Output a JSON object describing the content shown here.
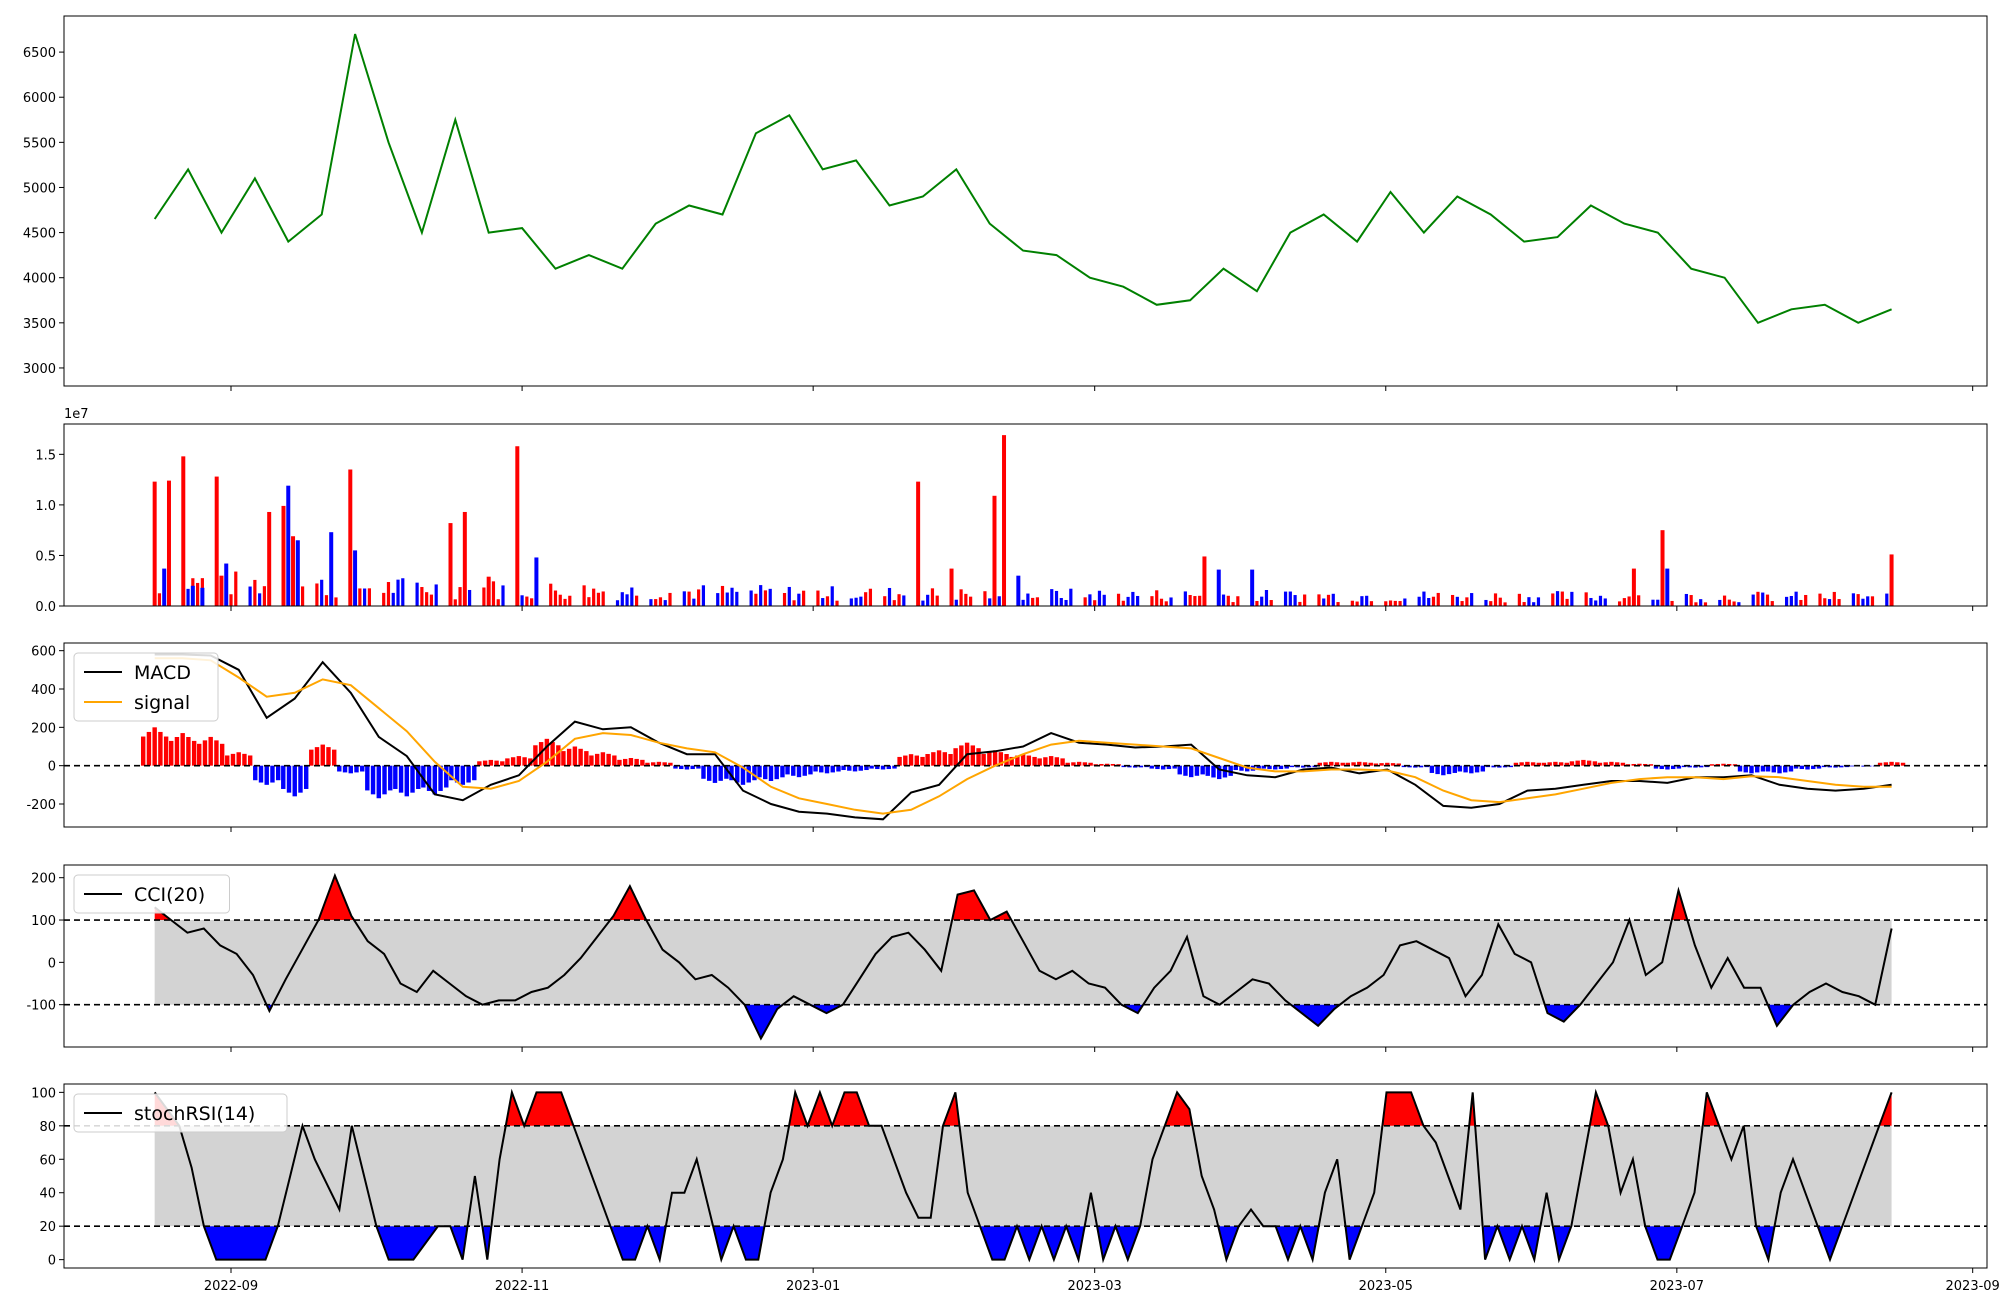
{
  "chart_data": [
    {
      "type": "line",
      "name": "price",
      "color": "#008000",
      "ylim": [
        2800,
        6900
      ],
      "yticks": [
        3000,
        3500,
        4000,
        4500,
        5000,
        5500,
        6000,
        6500
      ],
      "x_dates": [
        "2022-08-16",
        "2022-08-23",
        "2022-08-30",
        "2022-09-06",
        "2022-09-13",
        "2022-09-20",
        "2022-09-27",
        "2022-10-04",
        "2022-10-11",
        "2022-10-18",
        "2022-10-25",
        "2022-11-01",
        "2022-11-08",
        "2022-11-15",
        "2022-11-22",
        "2022-11-29",
        "2022-12-06",
        "2022-12-13",
        "2022-12-20",
        "2022-12-27",
        "2023-01-03",
        "2023-01-10",
        "2023-01-17",
        "2023-01-24",
        "2023-01-31",
        "2023-02-07",
        "2023-02-14",
        "2023-02-21",
        "2023-02-28",
        "2023-03-07",
        "2023-03-14",
        "2023-03-21",
        "2023-03-28",
        "2023-04-04",
        "2023-04-11",
        "2023-04-18",
        "2023-04-25",
        "2023-05-02",
        "2023-05-09",
        "2023-05-16",
        "2023-05-23",
        "2023-05-30",
        "2023-06-06",
        "2023-06-13",
        "2023-06-20",
        "2023-06-27",
        "2023-07-04",
        "2023-07-11",
        "2023-07-18",
        "2023-07-25",
        "2023-08-01",
        "2023-08-08",
        "2023-08-15"
      ],
      "y": [
        4650,
        5200,
        4500,
        5100,
        4400,
        4700,
        6700,
        5500,
        4500,
        5750,
        4500,
        4550,
        4100,
        4250,
        4100,
        4600,
        4800,
        4700,
        5600,
        5800,
        5200,
        5300,
        4800,
        4900,
        5200,
        4600,
        4300,
        4250,
        4000,
        3900,
        3700,
        3750,
        4100,
        3850,
        4500,
        4700,
        4400,
        4950,
        4500,
        4900,
        4700,
        4400,
        4450,
        4800,
        4600,
        4500,
        4100,
        4000,
        3500,
        3650,
        3700,
        3500,
        3650
      ]
    },
    {
      "type": "bar",
      "name": "volume",
      "scale_label": "1e7",
      "ylim": [
        0,
        1.8
      ],
      "yticks": [
        0.0,
        0.5,
        1.0,
        1.5
      ],
      "ytick_labels": [
        "0.0",
        "0.5",
        "1.0",
        "1.5"
      ],
      "colors": {
        "up": "#ff0000",
        "down": "#0000ff"
      },
      "spikes": [
        {
          "date": "2022-08-16",
          "value": 1.23,
          "dir": "up"
        },
        {
          "date": "2022-08-18",
          "value": 0.37,
          "dir": "down"
        },
        {
          "date": "2022-08-19",
          "value": 1.24,
          "dir": "up"
        },
        {
          "date": "2022-08-22",
          "value": 1.48,
          "dir": "up"
        },
        {
          "date": "2022-08-24",
          "value": 0.2,
          "dir": "down"
        },
        {
          "date": "2022-08-26",
          "value": 0.18,
          "dir": "down"
        },
        {
          "date": "2022-08-29",
          "value": 1.28,
          "dir": "up"
        },
        {
          "date": "2022-08-30",
          "value": 0.3,
          "dir": "up"
        },
        {
          "date": "2022-08-31",
          "value": 0.42,
          "dir": "down"
        },
        {
          "date": "2022-09-09",
          "value": 0.93,
          "dir": "up"
        },
        {
          "date": "2022-09-12",
          "value": 0.99,
          "dir": "up"
        },
        {
          "date": "2022-09-13",
          "value": 1.19,
          "dir": "down"
        },
        {
          "date": "2022-09-14",
          "value": 0.69,
          "dir": "up"
        },
        {
          "date": "2022-09-15",
          "value": 0.65,
          "dir": "down"
        },
        {
          "date": "2022-09-22",
          "value": 0.73,
          "dir": "down"
        },
        {
          "date": "2022-09-26",
          "value": 1.35,
          "dir": "up"
        },
        {
          "date": "2022-09-27",
          "value": 0.55,
          "dir": "down"
        },
        {
          "date": "2022-10-17",
          "value": 0.82,
          "dir": "up"
        },
        {
          "date": "2022-10-20",
          "value": 0.93,
          "dir": "up"
        },
        {
          "date": "2022-10-25",
          "value": 0.29,
          "dir": "up"
        },
        {
          "date": "2022-10-31",
          "value": 1.58,
          "dir": "up"
        },
        {
          "date": "2022-11-04",
          "value": 0.48,
          "dir": "down"
        },
        {
          "date": "2023-01-23",
          "value": 1.23,
          "dir": "up"
        },
        {
          "date": "2023-01-30",
          "value": 0.37,
          "dir": "up"
        },
        {
          "date": "2023-02-08",
          "value": 1.09,
          "dir": "up"
        },
        {
          "date": "2023-02-10",
          "value": 1.69,
          "dir": "up"
        },
        {
          "date": "2023-02-13",
          "value": 0.3,
          "dir": "down"
        },
        {
          "date": "2023-03-24",
          "value": 0.49,
          "dir": "up"
        },
        {
          "date": "2023-03-27",
          "value": 0.36,
          "dir": "down"
        },
        {
          "date": "2023-04-03",
          "value": 0.36,
          "dir": "down"
        },
        {
          "date": "2023-06-22",
          "value": 0.37,
          "dir": "up"
        },
        {
          "date": "2023-06-28",
          "value": 0.75,
          "dir": "up"
        },
        {
          "date": "2023-06-29",
          "value": 0.37,
          "dir": "down"
        },
        {
          "date": "2023-08-15",
          "value": 0.51,
          "dir": "up"
        }
      ]
    },
    {
      "type": "line",
      "name": "macd",
      "ylim": [
        -320,
        640
      ],
      "yticks": [
        -200,
        0,
        200,
        400,
        600
      ],
      "hist_colors": {
        "positive": "#ff0000",
        "negative": "#0000ff"
      },
      "series": [
        {
          "name": "MACD",
          "color": "#000000",
          "values": [
            580,
            580,
            575,
            500,
            250,
            350,
            540,
            380,
            150,
            50,
            -150,
            -180,
            -100,
            -50,
            100,
            230,
            190,
            200,
            120,
            60,
            60,
            -130,
            -200,
            -240,
            -250,
            -270,
            -280,
            -140,
            -100,
            60,
            75,
            100,
            170,
            120,
            110,
            95,
            100,
            110,
            -20,
            -50,
            -60,
            -20,
            -10,
            -40,
            -20,
            -100,
            -210,
            -220,
            -200,
            -130,
            -120,
            -100,
            -80,
            -80,
            -90,
            -60,
            -60,
            -50,
            -100,
            -120,
            -130,
            -120,
            -100
          ]
        },
        {
          "name": "signal",
          "color": "#ffa500",
          "values": [
            560,
            560,
            550,
            460,
            360,
            380,
            450,
            420,
            300,
            180,
            20,
            -110,
            -120,
            -80,
            20,
            140,
            170,
            160,
            120,
            90,
            70,
            -10,
            -110,
            -170,
            -200,
            -230,
            -250,
            -230,
            -160,
            -70,
            0,
            60,
            110,
            130,
            120,
            110,
            100,
            90,
            40,
            -10,
            -30,
            -30,
            -20,
            -20,
            -25,
            -60,
            -130,
            -180,
            -190,
            -170,
            -150,
            -120,
            -90,
            -70,
            -60,
            -60,
            -70,
            -55,
            -60,
            -80,
            -100,
            -110,
            -110
          ]
        }
      ],
      "histogram": [
        200,
        170,
        150,
        70,
        -100,
        -160,
        110,
        -40,
        -170,
        -160,
        -150,
        -100,
        30,
        50,
        140,
        100,
        70,
        40,
        20,
        -20,
        -90,
        -100,
        -80,
        -60,
        -40,
        -30,
        -20,
        60,
        80,
        120,
        80,
        60,
        50,
        20,
        10,
        -10,
        -20,
        -60,
        -70,
        -30,
        -20,
        -10,
        20,
        20,
        15,
        -10,
        -50,
        -40,
        -10,
        20,
        20,
        30,
        20,
        10,
        -20,
        -10,
        10,
        -40,
        -40,
        -20,
        -10,
        -5,
        20
      ],
      "legend": [
        "MACD",
        "signal"
      ],
      "legend_position": "upper left",
      "zero_line": true
    },
    {
      "type": "line",
      "name": "cci",
      "ylim": [
        -200,
        230
      ],
      "yticks": [
        -100,
        0,
        100,
        200
      ],
      "band": [
        -100,
        100
      ],
      "band_color": "#d3d3d3",
      "over_color": "#ff0000",
      "under_color": "#0000ff",
      "series": [
        {
          "name": "CCI(20)",
          "color": "#000000",
          "values": [
            130,
            100,
            70,
            80,
            40,
            20,
            -30,
            -115,
            -40,
            30,
            100,
            205,
            110,
            50,
            20,
            -50,
            -70,
            -20,
            -50,
            -80,
            -100,
            -90,
            -90,
            -70,
            -60,
            -30,
            10,
            60,
            110,
            180,
            100,
            30,
            0,
            -40,
            -30,
            -60,
            -100,
            -180,
            -110,
            -80,
            -100,
            -120,
            -100,
            -40,
            20,
            60,
            70,
            30,
            -20,
            160,
            170,
            100,
            120,
            50,
            -20,
            -40,
            -20,
            -50,
            -60,
            -100,
            -120,
            -60,
            -20,
            60,
            -80,
            -100,
            -70,
            -40,
            -50,
            -90,
            -120,
            -150,
            -110,
            -80,
            -60,
            -30,
            40,
            50,
            30,
            10,
            -80,
            -30,
            90,
            20,
            0,
            -120,
            -140,
            -100,
            -50,
            0,
            100,
            -30,
            0,
            170,
            40,
            -60,
            10,
            -60,
            -60,
            -150,
            -100,
            -70,
            -50,
            -70,
            -80,
            -100,
            80
          ]
        }
      ],
      "legend": [
        "CCI(20)"
      ],
      "legend_position": "upper left"
    },
    {
      "type": "line",
      "name": "stochrsi",
      "ylim": [
        -5,
        105
      ],
      "yticks": [
        0,
        20,
        40,
        60,
        80,
        100
      ],
      "band": [
        20,
        80
      ],
      "band_color": "#d3d3d3",
      "over_color": "#ff0000",
      "under_color": "#0000ff",
      "series": [
        {
          "name": "stochRSI(14)",
          "color": "#000000",
          "values": [
            100,
            90,
            80,
            55,
            20,
            0,
            0,
            0,
            0,
            0,
            20,
            50,
            80,
            60,
            45,
            30,
            80,
            50,
            20,
            0,
            0,
            0,
            10,
            20,
            20,
            0,
            50,
            0,
            60,
            100,
            80,
            100,
            100,
            100,
            80,
            60,
            40,
            20,
            0,
            0,
            20,
            0,
            40,
            40,
            60,
            30,
            0,
            20,
            0,
            0,
            40,
            60,
            100,
            80,
            100,
            80,
            100,
            100,
            80,
            80,
            60,
            40,
            25,
            25,
            80,
            100,
            40,
            20,
            0,
            0,
            20,
            0,
            20,
            0,
            20,
            0,
            40,
            0,
            20,
            0,
            20,
            60,
            80,
            100,
            90,
            50,
            30,
            0,
            20,
            30,
            20,
            20,
            0,
            20,
            0,
            40,
            60,
            0,
            20,
            40,
            100,
            100,
            100,
            80,
            70,
            50,
            30,
            100,
            0,
            20,
            0,
            20,
            0,
            40,
            0,
            20,
            60,
            100,
            80,
            40,
            60,
            20,
            0,
            0,
            20,
            40,
            100,
            80,
            60,
            80,
            20,
            0,
            40,
            60,
            40,
            20,
            0,
            20,
            40,
            60,
            80,
            100
          ]
        }
      ],
      "legend": [
        "stochRSI(14)"
      ],
      "legend_position": "upper left"
    }
  ],
  "x_axis": {
    "range": [
      "2022-07-28",
      "2023-09-04"
    ],
    "data_range": [
      "2022-08-16",
      "2023-08-15"
    ],
    "tick_labels": [
      "2022-09",
      "2022-11",
      "2023-01",
      "2023-03",
      "2023-05",
      "2023-07",
      "2023-09"
    ]
  }
}
